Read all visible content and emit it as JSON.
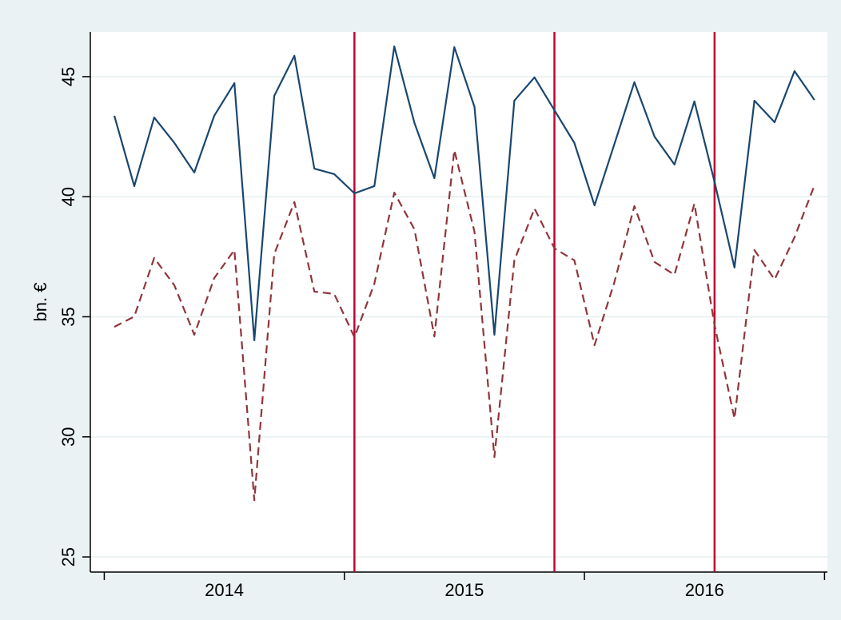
{
  "chart_data": {
    "type": "line",
    "ylabel": "bn. €",
    "x": [
      2014.042,
      2014.125,
      2014.208,
      2014.292,
      2014.375,
      2014.458,
      2014.542,
      2014.625,
      2014.708,
      2014.792,
      2014.875,
      2014.958,
      2015.042,
      2015.125,
      2015.208,
      2015.292,
      2015.375,
      2015.458,
      2015.542,
      2015.625,
      2015.708,
      2015.792,
      2015.875,
      2015.958,
      2016.042,
      2016.125,
      2016.208,
      2016.292,
      2016.375,
      2016.458,
      2016.542,
      2016.625,
      2016.708,
      2016.792,
      2016.875,
      2016.958
    ],
    "series": [
      {
        "color": "#1a476f",
        "dash": false,
        "values": [
          43.37,
          40.44,
          43.3,
          42.24,
          41.01,
          43.37,
          44.73,
          34.02,
          44.2,
          45.87,
          41.17,
          40.94,
          40.14,
          40.44,
          46.26,
          43.07,
          40.77,
          46.23,
          43.74,
          34.25,
          44.0,
          44.97,
          43.6,
          42.24,
          39.64,
          42.2,
          44.77,
          42.5,
          41.34,
          43.97,
          40.61,
          37.05,
          44.0,
          43.1,
          45.23,
          44.03
        ]
      },
      {
        "color": "#90353b",
        "dash": true,
        "values": [
          34.58,
          35.01,
          37.45,
          36.31,
          34.25,
          36.61,
          37.78,
          27.36,
          37.61,
          39.78,
          36.05,
          35.95,
          34.15,
          36.38,
          40.17,
          38.64,
          34.18,
          41.94,
          38.54,
          29.16,
          37.35,
          39.51,
          37.85,
          37.35,
          33.82,
          36.45,
          39.61,
          37.28,
          36.75,
          39.71,
          34.65,
          30.76,
          37.78,
          36.55,
          38.31,
          40.47
        ]
      }
    ],
    "xlim": [
      2013.942,
      2017.012
    ],
    "xticks": [
      {
        "value": 2014.5,
        "label": "2014"
      },
      {
        "value": 2015.5,
        "label": "2015"
      },
      {
        "value": 2016.5,
        "label": "2016"
      }
    ],
    "xtick_marks": [
      2014,
      2015,
      2016,
      2017
    ],
    "ylim": [
      24.37,
      46.86
    ],
    "yticks": [
      25,
      30,
      35,
      40,
      45
    ],
    "grid": true,
    "vlines": [
      2015.042,
      2015.875,
      2016.542
    ],
    "vline_color": "#c10534"
  }
}
